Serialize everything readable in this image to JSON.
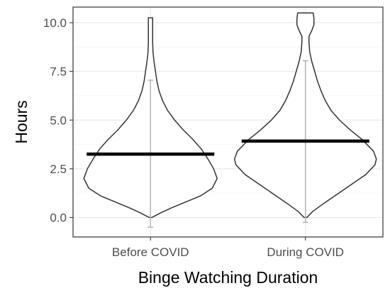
{
  "chart_data": {
    "type": "violin",
    "title": "",
    "xlabel": "Binge Watching Duration",
    "ylabel": "Hours",
    "ylim": [
      -1.0,
      10.8
    ],
    "yticks": [
      0.0,
      2.5,
      5.0,
      7.5,
      10.0
    ],
    "ytick_labels": [
      "0.0",
      "2.5",
      "5.0",
      "7.5",
      "10.0"
    ],
    "grid": true,
    "categories": [
      "Before COVID",
      "During COVID"
    ],
    "groups": [
      {
        "label": "Before COVID",
        "mean": 3.25,
        "range_low": -0.5,
        "range_high": 7.05,
        "y_min": 0.0,
        "y_max": 10.25,
        "density": [
          [
            0.0,
            0.02
          ],
          [
            0.25,
            0.15
          ],
          [
            0.5,
            0.3
          ],
          [
            0.8,
            0.5
          ],
          [
            1.1,
            0.7
          ],
          [
            1.5,
            0.87
          ],
          [
            2.0,
            0.94
          ],
          [
            2.5,
            0.89
          ],
          [
            3.0,
            0.81
          ],
          [
            3.5,
            0.72
          ],
          [
            4.0,
            0.6
          ],
          [
            4.5,
            0.46
          ],
          [
            5.0,
            0.34
          ],
          [
            5.5,
            0.24
          ],
          [
            6.0,
            0.17
          ],
          [
            6.5,
            0.12
          ],
          [
            7.0,
            0.09
          ],
          [
            7.5,
            0.07
          ],
          [
            8.0,
            0.05
          ],
          [
            8.5,
            0.035
          ],
          [
            9.0,
            0.03
          ],
          [
            9.5,
            0.03
          ],
          [
            10.0,
            0.03
          ],
          [
            10.25,
            0.03
          ]
        ]
      },
      {
        "label": "During COVID",
        "mean": 3.92,
        "range_low": -0.25,
        "range_high": 8.05,
        "y_min": 0.0,
        "y_max": 10.5,
        "density": [
          [
            0.0,
            0.02
          ],
          [
            0.3,
            0.1
          ],
          [
            0.7,
            0.25
          ],
          [
            1.2,
            0.45
          ],
          [
            1.7,
            0.65
          ],
          [
            2.2,
            0.85
          ],
          [
            2.7,
            0.98
          ],
          [
            3.0,
            1.0
          ],
          [
            3.4,
            0.96
          ],
          [
            4.0,
            0.8
          ],
          [
            4.5,
            0.63
          ],
          [
            5.0,
            0.48
          ],
          [
            5.5,
            0.36
          ],
          [
            6.0,
            0.28
          ],
          [
            6.5,
            0.22
          ],
          [
            7.0,
            0.17
          ],
          [
            7.5,
            0.13
          ],
          [
            8.0,
            0.09
          ],
          [
            8.5,
            0.06
          ],
          [
            9.0,
            0.05
          ],
          [
            9.3,
            0.05
          ],
          [
            9.6,
            0.09
          ],
          [
            9.9,
            0.12
          ],
          [
            10.2,
            0.12
          ],
          [
            10.5,
            0.11
          ]
        ]
      }
    ]
  }
}
